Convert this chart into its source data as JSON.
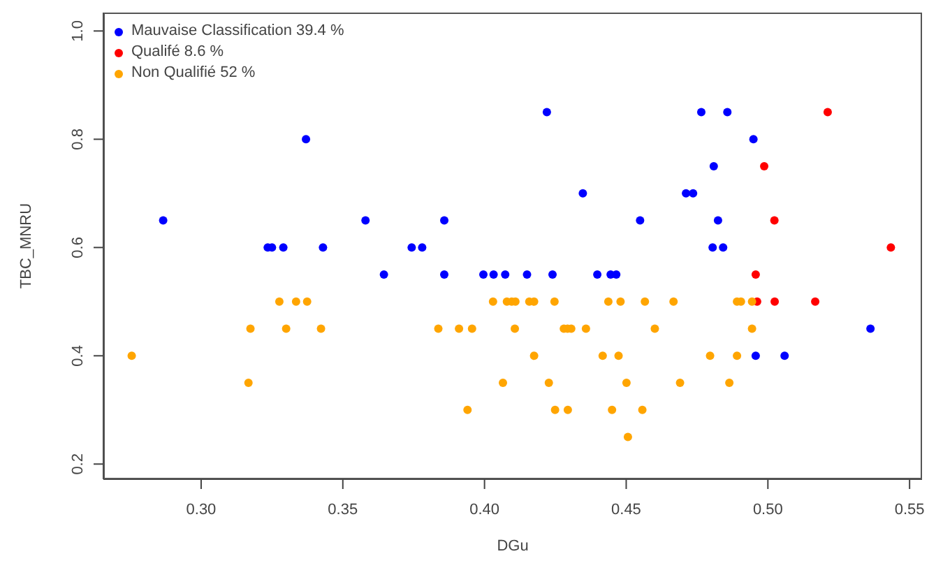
{
  "chart_data": {
    "type": "scatter",
    "xlabel": "DGu",
    "ylabel": "TBC_MNRU",
    "xlim": [
      0.2655,
      0.5544
    ],
    "xticks": [
      {
        "value": 0.3,
        "label": "0.30"
      },
      {
        "value": 0.35,
        "label": "0.35"
      },
      {
        "value": 0.4,
        "label": "0.40"
      },
      {
        "value": 0.45,
        "label": "0.45"
      },
      {
        "value": 0.5,
        "label": "0.50"
      },
      {
        "value": 0.55,
        "label": "0.55"
      }
    ],
    "ylim": [
      0.172,
      1.034
    ],
    "yticks": [
      0.2,
      0.4,
      0.6,
      {
        "value": 0.8,
        "label": "0.8"
      },
      {
        "value": 1.0,
        "label": "1.0"
      }
    ],
    "grid": false,
    "legend": "top left",
    "marker": "circle",
    "series": [
      {
        "name": "Mauvaise Classification 39.4 %",
        "color": "#0000ff",
        "x": [
          0.2866,
          0.337,
          0.358,
          0.3235,
          0.325,
          0.329,
          0.343,
          0.3743,
          0.378,
          0.3645,
          0.422,
          0.4347,
          0.3858,
          0.4549,
          0.3858,
          0.3996,
          0.4032,
          0.4073,
          0.415,
          0.424,
          0.4398,
          0.4445,
          0.4465,
          0.4765,
          0.4857,
          0.4949,
          0.4809,
          0.4711,
          0.4736,
          0.4824,
          0.4805,
          0.4842,
          0.5362,
          0.4957,
          0.5059
        ],
        "values": [
          0.65,
          0.8,
          0.65,
          0.6,
          0.6,
          0.6,
          0.6,
          0.6,
          0.6,
          0.55,
          0.85,
          0.7,
          0.65,
          0.65,
          0.55,
          0.55,
          0.55,
          0.55,
          0.55,
          0.55,
          0.55,
          0.55,
          0.55,
          0.85,
          0.85,
          0.8,
          0.75,
          0.7,
          0.7,
          0.65,
          0.6,
          0.6,
          0.45,
          0.4,
          0.4
        ]
      },
      {
        "name": "Qualifé 8.6 %",
        "color": "#ff0000",
        "x": [
          0.5211,
          0.4987,
          0.5023,
          0.5434,
          0.4957,
          0.4962,
          0.5024,
          0.5167
        ],
        "values": [
          0.85,
          0.75,
          0.65,
          0.6,
          0.55,
          0.5,
          0.5,
          0.5
        ]
      },
      {
        "name": "Non Qualifié 52 %",
        "color": "#ffa500",
        "x": [
          0.3276,
          0.3335,
          0.3374,
          0.3174,
          0.33,
          0.3423,
          0.2755,
          0.3167,
          0.403,
          0.4079,
          0.4096,
          0.4109,
          0.4158,
          0.4175,
          0.4247,
          0.4437,
          0.448,
          0.4566,
          0.4667,
          0.4891,
          0.4905,
          0.4944,
          0.3837,
          0.391,
          0.3956,
          0.4107,
          0.428,
          0.4293,
          0.4306,
          0.4358,
          0.4601,
          0.4944,
          0.4175,
          0.4417,
          0.4473,
          0.4796,
          0.4891,
          0.4065,
          0.4227,
          0.4501,
          0.469,
          0.4864,
          0.394,
          0.4249,
          0.4294,
          0.445,
          0.4557,
          0.4506
        ],
        "values": [
          0.5,
          0.5,
          0.5,
          0.45,
          0.45,
          0.45,
          0.4,
          0.35,
          0.5,
          0.5,
          0.5,
          0.5,
          0.5,
          0.5,
          0.5,
          0.5,
          0.5,
          0.5,
          0.5,
          0.5,
          0.5,
          0.5,
          0.45,
          0.45,
          0.45,
          0.45,
          0.45,
          0.45,
          0.45,
          0.45,
          0.45,
          0.45,
          0.4,
          0.4,
          0.4,
          0.4,
          0.4,
          0.35,
          0.35,
          0.35,
          0.35,
          0.35,
          0.3,
          0.3,
          0.3,
          0.3,
          0.3,
          0.25
        ]
      }
    ]
  }
}
